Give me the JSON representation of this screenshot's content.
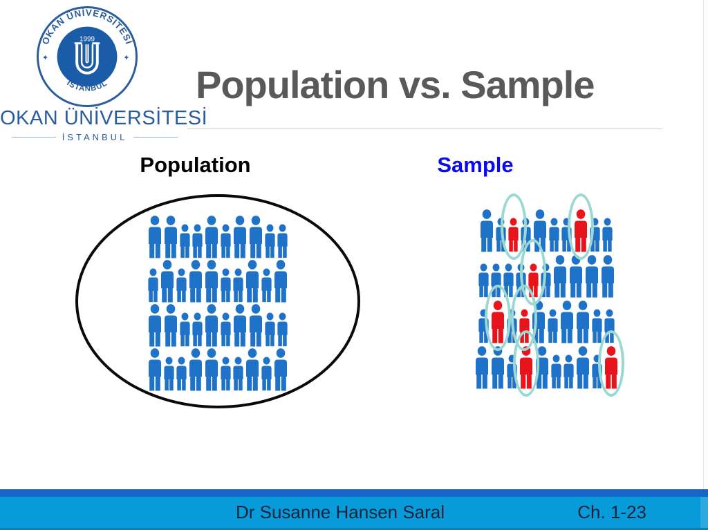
{
  "slide_title": "Population vs. Sample",
  "logo": {
    "seal": {
      "ring_top_text": "OKAN ÜNİVERSİTESİ",
      "ring_bottom_text": "İSTANBUL",
      "year": "1999",
      "separator_left": "✦",
      "separator_right": "✦"
    },
    "wordmark": "OKAN ÜNİVERSİTESİ",
    "wordmark_subtitle": "İSTANBUL"
  },
  "section_labels": {
    "population": "Population",
    "sample": "Sample"
  },
  "colors": {
    "title_text": "#58595b",
    "logo_blue": "#2a5c9e",
    "seal_disc": "#1b5ca8",
    "person_blue": "#1e72c8",
    "person_red": "#e8141c",
    "selection_ring": "#9ad8d4",
    "population_label": "#000000",
    "sample_label": "#0a0af2",
    "footer_stripe": "#1965c8",
    "footer_bar": "#089bd9",
    "footer_text": "#14233c"
  },
  "population_grid": {
    "rows": [
      [
        "bL",
        "bL",
        "bS",
        "bS",
        "bL",
        "bS",
        "bL",
        "bL",
        "bS",
        "bS"
      ],
      [
        "bS",
        "bL",
        "bS",
        "bL",
        "bL",
        "bS",
        "bS",
        "bL",
        "bS",
        "bL"
      ],
      [
        "bL",
        "bL",
        "bS",
        "bS",
        "bL",
        "bS",
        "bL",
        "bL",
        "bS",
        "bS"
      ],
      [
        "bL",
        "bS",
        "bS",
        "bL",
        "bL",
        "bS",
        "bS",
        "bL",
        "bS",
        "bL"
      ]
    ]
  },
  "sample_grid": {
    "rows": [
      [
        "bL",
        "bS",
        "rS*",
        "bS",
        "bL",
        "bS",
        "bS",
        "rL*",
        "bS",
        "bS"
      ],
      [
        "bS",
        "bS",
        "bS",
        "bS",
        "rS*",
        "bS",
        "bL",
        "bL",
        "bL",
        "bL"
      ],
      [
        "bS",
        "rL*",
        "bS",
        "rS*",
        "bL",
        "bS",
        "bL",
        "bL",
        "bS",
        "bS"
      ],
      [
        "bL",
        "bL",
        "bS",
        "rL*",
        "bL",
        "bS",
        "bS",
        "bL",
        "bS",
        "rL*"
      ]
    ]
  },
  "footer": {
    "author": "Dr Susanne Hansen Saral",
    "chapter": "Ch. 1-23"
  }
}
